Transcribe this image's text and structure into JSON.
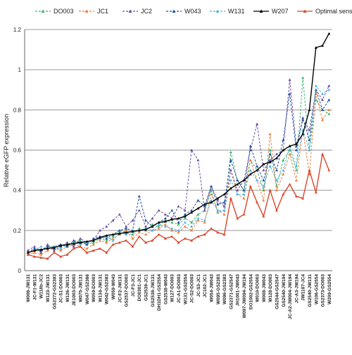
{
  "chart_data": {
    "type": "line",
    "y_label": "Relative eGFP expression",
    "categories": [
      "W006-JW131",
      "JC-F1-W131",
      "W118b-JC2",
      "W123-JW131",
      "GS2372-GS2383",
      "JC-S1-DO003",
      "W126-JW131",
      "JE1003-DO003",
      "W075-JW131",
      "W047-GS2366",
      "W059-DO003",
      "W134-JW131",
      "W042-GS2383",
      "W059-W043",
      "JC-F2-JW131",
      "GS2537-DO003",
      "JC-F3-JC1",
      "DO0301-JC1",
      "GS2539-JC1",
      "GS2538-JW131",
      "DH1DH1-GS2554",
      "GS2538-W043",
      "W127-DO003",
      "JC-A1-DO003",
      "W131-GS2554",
      "JC-S2-DO003",
      "JC-S3-JC1",
      "JC102-JC1",
      "W054-JW043",
      "W095-GS2383",
      "W096-GS2383",
      "GS2371-GS2547",
      "JH1001-JW043",
      "W097-JW094-JW194",
      "DO1002-GS2554",
      "W010-DO003",
      "W008-JW043",
      "W128-DO003",
      "GS2544-GS2547",
      "GS2540-JW194",
      "JC-A2-JW004-JW194",
      "JC-A3-JW194",
      "JW1187-JC4",
      "GS2540-JW131",
      "W106-GS2554",
      "GS2373-DO003",
      "W209-GS2554"
    ],
    "ylim": [
      0,
      1.2
    ],
    "yticks": [
      0,
      0.2,
      0.4,
      0.6,
      0.8,
      1,
      1.2
    ],
    "grid": true,
    "legend": "top",
    "series": [
      {
        "name": "DO003",
        "color": "#3cb371",
        "dashed": true,
        "values": [
          0.09,
          0.1,
          0.1,
          0.12,
          0.12,
          0.13,
          0.12,
          0.14,
          0.15,
          0.13,
          0.14,
          0.16,
          0.15,
          0.17,
          0.2,
          0.19,
          0.18,
          0.21,
          0.2,
          0.23,
          0.22,
          0.25,
          0.24,
          0.23,
          0.26,
          0.24,
          0.28,
          0.3,
          0.4,
          0.29,
          0.3,
          0.59,
          0.45,
          0.4,
          0.55,
          0.5,
          0.4,
          0.6,
          0.42,
          0.55,
          0.6,
          0.5,
          0.96,
          0.6,
          0.85,
          0.8,
          0.78
        ]
      },
      {
        "name": "JC1",
        "color": "#e8803a",
        "dashed": true,
        "values": [
          0.08,
          0.09,
          0.08,
          0.1,
          0.11,
          0.1,
          0.12,
          0.13,
          0.12,
          0.11,
          0.13,
          0.15,
          0.14,
          0.16,
          0.18,
          0.2,
          0.16,
          0.19,
          0.18,
          0.2,
          0.21,
          0.23,
          0.2,
          0.19,
          0.22,
          0.2,
          0.25,
          0.24,
          0.38,
          0.3,
          0.28,
          0.5,
          0.38,
          0.36,
          0.55,
          0.45,
          0.35,
          0.68,
          0.4,
          0.48,
          0.58,
          0.45,
          0.7,
          0.48,
          0.88,
          0.75,
          0.8
        ]
      },
      {
        "name": "JC2",
        "color": "#6a4c9c",
        "dashed": true,
        "values": [
          0.1,
          0.12,
          0.09,
          0.13,
          0.1,
          0.12,
          0.14,
          0.12,
          0.16,
          0.14,
          0.15,
          0.2,
          0.22,
          0.25,
          0.28,
          0.22,
          0.25,
          0.3,
          0.22,
          0.26,
          0.3,
          0.28,
          0.26,
          0.32,
          0.3,
          0.6,
          0.55,
          0.3,
          0.42,
          0.35,
          0.32,
          0.5,
          0.4,
          0.45,
          0.6,
          0.73,
          0.5,
          0.55,
          0.58,
          0.6,
          0.95,
          0.62,
          0.75,
          0.7,
          0.9,
          0.85,
          0.92
        ]
      },
      {
        "name": "W043",
        "color": "#1f4e9c",
        "dashed": true,
        "values": [
          0.09,
          0.11,
          0.1,
          0.12,
          0.11,
          0.13,
          0.12,
          0.15,
          0.14,
          0.13,
          0.16,
          0.17,
          0.16,
          0.18,
          0.2,
          0.21,
          0.2,
          0.37,
          0.25,
          0.22,
          0.24,
          0.26,
          0.3,
          0.24,
          0.28,
          0.3,
          0.35,
          0.32,
          0.42,
          0.33,
          0.34,
          0.55,
          0.45,
          0.4,
          0.62,
          0.52,
          0.45,
          0.58,
          0.5,
          0.65,
          0.88,
          0.6,
          0.76,
          0.65,
          0.9,
          0.8,
          0.85
        ]
      },
      {
        "name": "W131",
        "color": "#4fb3e0",
        "dashed": true,
        "values": [
          0.09,
          0.1,
          0.12,
          0.11,
          0.12,
          0.11,
          0.13,
          0.14,
          0.13,
          0.14,
          0.15,
          0.16,
          0.17,
          0.15,
          0.19,
          0.18,
          0.2,
          0.2,
          0.21,
          0.2,
          0.23,
          0.22,
          0.21,
          0.2,
          0.24,
          0.22,
          0.26,
          0.25,
          0.35,
          0.3,
          0.3,
          0.45,
          0.38,
          0.38,
          0.5,
          0.45,
          0.42,
          0.52,
          0.45,
          0.5,
          0.62,
          0.52,
          0.7,
          0.6,
          0.92,
          0.88,
          0.9
        ]
      },
      {
        "name": "W207",
        "color": "#000000",
        "dashed": false,
        "values": [
          0.09,
          0.1,
          0.105,
          0.11,
          0.115,
          0.125,
          0.13,
          0.135,
          0.14,
          0.145,
          0.15,
          0.165,
          0.175,
          0.18,
          0.185,
          0.19,
          0.195,
          0.2,
          0.205,
          0.22,
          0.24,
          0.245,
          0.255,
          0.26,
          0.27,
          0.29,
          0.31,
          0.33,
          0.34,
          0.36,
          0.38,
          0.41,
          0.43,
          0.45,
          0.48,
          0.5,
          0.53,
          0.54,
          0.56,
          0.6,
          0.62,
          0.63,
          0.68,
          0.8,
          1.11,
          1.12,
          1.18
        ]
      },
      {
        "name": "Optimal sense",
        "color": "#d9472b",
        "dashed": false,
        "values": [
          0.08,
          0.07,
          0.065,
          0.06,
          0.09,
          0.07,
          0.08,
          0.11,
          0.12,
          0.09,
          0.1,
          0.11,
          0.09,
          0.13,
          0.14,
          0.15,
          0.12,
          0.17,
          0.14,
          0.15,
          0.18,
          0.16,
          0.17,
          0.14,
          0.16,
          0.15,
          0.17,
          0.18,
          0.21,
          0.19,
          0.18,
          0.36,
          0.26,
          0.28,
          0.42,
          0.34,
          0.27,
          0.4,
          0.3,
          0.38,
          0.43,
          0.37,
          0.36,
          0.5,
          0.39,
          0.58,
          0.5
        ]
      }
    ]
  }
}
